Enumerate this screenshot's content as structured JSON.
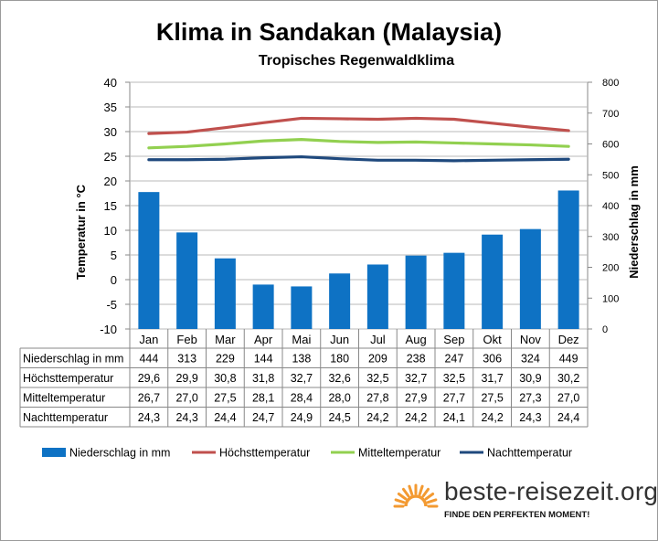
{
  "colors": {
    "precip": "#0e72c4",
    "high": "#c0504d",
    "mean": "#92d050",
    "night": "#1f497d",
    "grid": "#b9b9b9",
    "brand_sun": "#f39a32"
  },
  "chart_data": {
    "type": "bar+line",
    "title": "Klima in Sandakan (Malaysia)",
    "subtitle": "Tropisches  Regenwaldklima",
    "ylabel_left": "Temperatur in °C",
    "ylabel_right": "Niederschlag in mm",
    "ylim_left": [
      -10,
      40
    ],
    "ylim_right": [
      0,
      800
    ],
    "yticks_left": [
      "40",
      "35",
      "30",
      "25",
      "20",
      "15",
      "10",
      "5",
      "0",
      "-5",
      "-10"
    ],
    "yticks_right": [
      "800",
      "700",
      "600",
      "500",
      "400",
      "300",
      "200",
      "100",
      "0"
    ],
    "grid": true,
    "legend_position": "bottom",
    "categories": [
      "Jan",
      "Feb",
      "Mar",
      "Apr",
      "Mai",
      "Jun",
      "Jul",
      "Aug",
      "Sep",
      "Okt",
      "Nov",
      "Dez"
    ],
    "series": [
      {
        "name": "Niederschlag in mm",
        "type": "bar",
        "axis": "right",
        "color_key": "precip",
        "values": [
          444,
          313,
          229,
          144,
          138,
          180,
          209,
          238,
          247,
          306,
          324,
          449
        ],
        "labels": [
          "444",
          "313",
          "229",
          "144",
          "138",
          "180",
          "209",
          "238",
          "247",
          "306",
          "324",
          "449"
        ]
      },
      {
        "name": "Höchsttemperatur",
        "type": "line",
        "axis": "left",
        "color_key": "high",
        "values": [
          29.6,
          29.9,
          30.8,
          31.8,
          32.7,
          32.6,
          32.5,
          32.7,
          32.5,
          31.7,
          30.9,
          30.2
        ],
        "labels": [
          "29,6",
          "29,9",
          "30,8",
          "31,8",
          "32,7",
          "32,6",
          "32,5",
          "32,7",
          "32,5",
          "31,7",
          "30,9",
          "30,2"
        ]
      },
      {
        "name": "Mitteltemperatur",
        "type": "line",
        "axis": "left",
        "color_key": "mean",
        "values": [
          26.7,
          27.0,
          27.5,
          28.1,
          28.4,
          28.0,
          27.8,
          27.9,
          27.7,
          27.5,
          27.3,
          27.0
        ],
        "labels": [
          "26,7",
          "27,0",
          "27,5",
          "28,1",
          "28,4",
          "28,0",
          "27,8",
          "27,9",
          "27,7",
          "27,5",
          "27,3",
          "27,0"
        ]
      },
      {
        "name": "Nachttemperatur",
        "type": "line",
        "axis": "left",
        "color_key": "night",
        "values": [
          24.3,
          24.3,
          24.4,
          24.7,
          24.9,
          24.5,
          24.2,
          24.2,
          24.1,
          24.2,
          24.3,
          24.4
        ],
        "labels": [
          "24,3",
          "24,3",
          "24,4",
          "24,7",
          "24,9",
          "24,5",
          "24,2",
          "24,2",
          "24,1",
          "24,2",
          "24,3",
          "24,4"
        ]
      }
    ]
  },
  "branding": {
    "name": "beste-reisezeit.org",
    "slogan": "FINDE DEN PERFEKTEN MOMENT!"
  }
}
